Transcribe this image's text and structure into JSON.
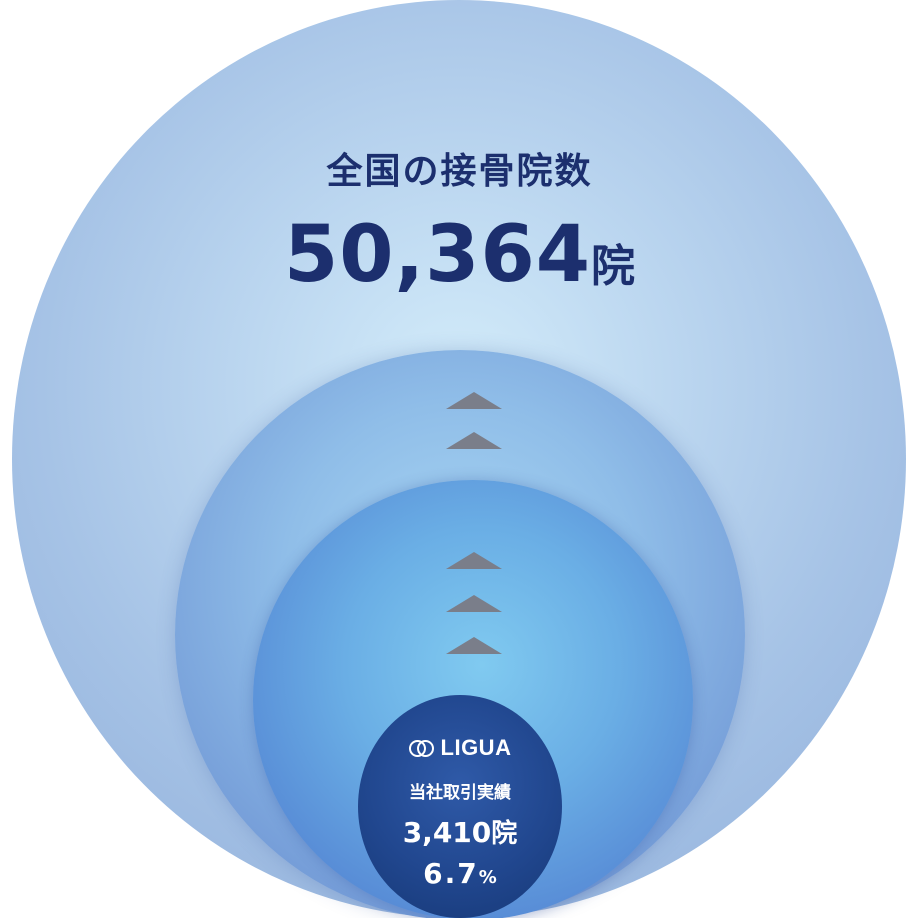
{
  "outer": {
    "title": "全国の接骨院数",
    "total_value": "50,364",
    "total_unit": "院"
  },
  "core": {
    "brand": "LIGUA",
    "brand_icon": "double-ring-logo-icon",
    "subtitle": "当社取引実績",
    "count_value": "3,410",
    "count_unit": "院",
    "percent_value": "6.7",
    "percent_unit": "%"
  },
  "colors": {
    "text_dark": "#1c2f6e",
    "arrow": "#7a7e8a",
    "core_circle": "#21478f"
  }
}
